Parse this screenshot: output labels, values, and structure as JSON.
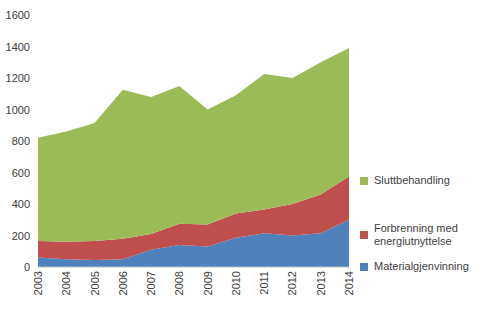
{
  "chart_data": {
    "type": "area",
    "stacked": true,
    "grid": false,
    "legend": "right",
    "categories": [
      "2003",
      "2004",
      "2005",
      "2006",
      "2007",
      "2008",
      "2009",
      "2010",
      "2011",
      "2012",
      "2013",
      "2014"
    ],
    "series": [
      {
        "name": "Materialgjenvinning",
        "color": "#4f81bd",
        "values": [
          60,
          50,
          45,
          50,
          110,
          140,
          130,
          185,
          215,
          200,
          215,
          300
        ]
      },
      {
        "name": "Forbrenning med energiutnyttelse",
        "color": "#c0504d",
        "values": [
          105,
          110,
          120,
          130,
          100,
          135,
          140,
          155,
          150,
          200,
          245,
          275
        ]
      },
      {
        "name": "Sluttbehandling",
        "color": "#9bbb59",
        "values": [
          655,
          700,
          750,
          945,
          870,
          875,
          730,
          750,
          860,
          800,
          840,
          815
        ]
      }
    ],
    "ylim": [
      0,
      1600
    ],
    "yticks": [
      0,
      200,
      400,
      600,
      800,
      1000,
      1200,
      1400,
      1600
    ]
  }
}
